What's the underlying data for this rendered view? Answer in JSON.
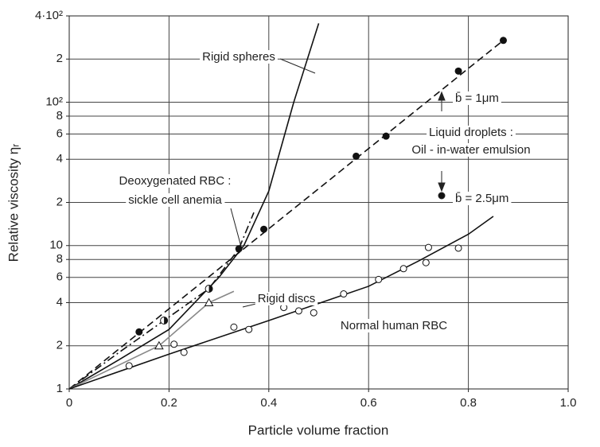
{
  "chart_data": {
    "type": "scatter",
    "x_label": "Particle volume fraction",
    "y_label": "Relative viscosity ηᵣ",
    "log_y": true,
    "grid": true,
    "xlim": [
      0,
      1.0
    ],
    "ylim": [
      1,
      400
    ],
    "xticks": [
      0,
      0.2,
      0.4,
      0.6,
      0.8,
      {
        "value": 1.0,
        "label": "1.0"
      }
    ],
    "yticks": [
      1,
      2,
      4,
      6,
      8,
      10,
      {
        "value": 20,
        "label": "2"
      },
      {
        "value": 40,
        "label": "4"
      },
      {
        "value": 60,
        "label": "6"
      },
      {
        "value": 80,
        "label": "8"
      },
      {
        "value": 100,
        "label": "10²"
      },
      {
        "value": 200,
        "label": "2"
      },
      {
        "value": 400,
        "label": "4·10²"
      }
    ],
    "annotations": [
      "Rigid spheres",
      "Deoxygenated RBC :",
      "sickle cell anemia",
      "Rigid discs",
      "Normal human RBC",
      "Liquid droplets :",
      "Oil - in-water emulsion",
      "b̄ = 1μm",
      "b̄ = 2.5μm"
    ],
    "series": [
      {
        "marker": "filled",
        "color": "#111",
        "x": [
          0.14,
          0.28,
          0.34,
          0.39,
          0.575,
          0.635,
          0.78,
          0.87
        ],
        "values": [
          2.5,
          5,
          9.5,
          13,
          42,
          58,
          165,
          270
        ]
      },
      {
        "marker": "open",
        "color": "#111",
        "x": [
          0.12,
          0.21,
          0.23,
          0.33,
          0.36,
          0.43,
          0.46,
          0.49,
          0.55,
          0.62,
          0.67,
          0.715,
          0.72,
          0.78
        ],
        "values": [
          1.45,
          2.05,
          1.8,
          2.7,
          2.6,
          3.7,
          3.5,
          3.4,
          4.6,
          5.8,
          6.9,
          7.6,
          9.7,
          9.6
        ]
      },
      {
        "marker": "triangle",
        "color": "#111",
        "x": [
          0.18,
          0.28
        ],
        "values": [
          2,
          4
        ]
      },
      {
        "marker": "half",
        "color": "#111",
        "x": [
          0.19,
          0.28
        ],
        "values": [
          3,
          5
        ]
      },
      {
        "line": "dashed",
        "color": "#111",
        "x": [
          0,
          0.87
        ],
        "values": [
          1,
          270
        ]
      },
      {
        "line": "solid",
        "color": "#111",
        "x": [
          0,
          0.1,
          0.2,
          0.3,
          0.35,
          0.4,
          0.45,
          0.5
        ],
        "values": [
          1,
          1.6,
          2.6,
          6,
          10,
          24,
          100,
          355
        ]
      },
      {
        "line": "dashdot",
        "color": "#111",
        "x": [
          0,
          0.1,
          0.19,
          0.28,
          0.34,
          0.37
        ],
        "values": [
          1,
          1.8,
          3,
          5,
          9.5,
          17
        ]
      },
      {
        "line": "solid",
        "color": "#888",
        "x": [
          0,
          0.18,
          0.28,
          0.33
        ],
        "values": [
          1,
          2,
          4,
          4.8
        ]
      },
      {
        "line": "solid",
        "color": "#111",
        "x": [
          0,
          0.2,
          0.4,
          0.6,
          0.7,
          0.8,
          0.85
        ],
        "values": [
          1,
          1.75,
          3,
          5.2,
          7.8,
          12,
          16
        ]
      }
    ]
  }
}
